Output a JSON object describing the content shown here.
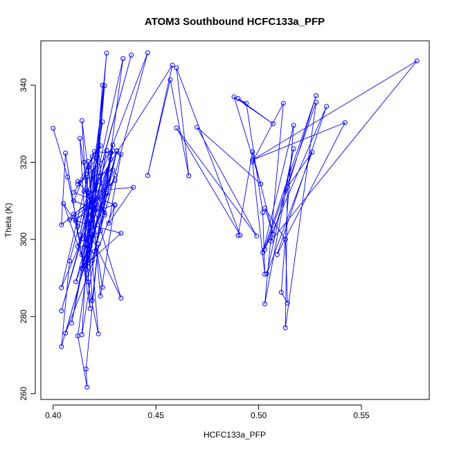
{
  "chart_data": {
    "type": "line",
    "title": "ATOM3 Southbound HCFC133a_PFP",
    "xlabel": "HCFC133a_PFP",
    "ylabel": "Theta (K)",
    "xlim": [
      0.394,
      0.583
    ],
    "ylim": [
      258.5,
      351.5
    ],
    "x_ticks": [
      0.4,
      0.45,
      0.5,
      0.55
    ],
    "x_tick_labels": [
      "0.40",
      "0.45",
      "0.50",
      "0.55"
    ],
    "y_ticks": [
      260,
      280,
      300,
      320,
      340
    ],
    "y_tick_labels": [
      "260",
      "280",
      "300",
      "320",
      "340"
    ],
    "grid": false,
    "legend": "none",
    "line_color": "#0000ff",
    "marker": "open-circle",
    "series": [
      {
        "values": [
          [
            0.4,
            328.8
          ],
          [
            0.407,
            316.2
          ],
          [
            0.412,
            303.5
          ],
          [
            0.405,
            309.3
          ],
          [
            0.415,
            294.0
          ],
          [
            0.417,
            318.8
          ],
          [
            0.421,
            301.1
          ],
          [
            0.414,
            330.8
          ],
          [
            0.419,
            284.2
          ],
          [
            0.422,
            298.8
          ],
          [
            0.416,
            266.4
          ],
          [
            0.4165,
            261.7
          ],
          [
            0.412,
            275.0
          ],
          [
            0.418,
            298.2
          ],
          [
            0.404,
            272.2
          ],
          [
            0.408,
            294.4
          ],
          [
            0.423,
            324.3
          ],
          [
            0.413,
            301.2
          ],
          [
            0.424,
            330.5
          ],
          [
            0.414,
            296.0
          ],
          [
            0.425,
            339.9
          ],
          [
            0.417,
            289.0
          ],
          [
            0.426,
            348.3
          ],
          [
            0.416,
            292.2
          ],
          [
            0.429,
            324.5
          ],
          [
            0.423,
            302.2
          ],
          [
            0.434,
            346.9
          ],
          [
            0.418,
            308.5
          ],
          [
            0.438,
            347.8
          ],
          [
            0.42,
            312.1
          ],
          [
            0.446,
            348.4
          ],
          [
            0.42,
            296.9
          ],
          [
            0.431,
            323.0
          ],
          [
            0.406,
            275.7
          ],
          [
            0.43,
            308.9
          ],
          [
            0.415,
            312.4
          ],
          [
            0.439,
            313.5
          ],
          [
            0.427,
            304.2
          ],
          [
            0.433,
            322.1
          ],
          [
            0.42,
            322.8
          ],
          [
            0.41,
            310.0
          ],
          [
            0.425,
            306.9
          ],
          [
            0.412,
            315.0
          ],
          [
            0.429,
            318.0
          ],
          [
            0.414,
            292.5
          ],
          [
            0.433,
            301.6
          ],
          [
            0.411,
            304.8
          ],
          [
            0.43,
            315.3
          ],
          [
            0.404,
            303.8
          ],
          [
            0.406,
            322.4
          ],
          [
            0.418,
            282.1
          ],
          [
            0.413,
            326.2
          ],
          [
            0.424,
            287.6
          ],
          [
            0.415,
            320.0
          ],
          [
            0.422,
            275.5
          ],
          [
            0.41,
            306.6
          ],
          [
            0.42,
            310.3
          ],
          [
            0.409,
            278.3
          ],
          [
            0.426,
            323.1
          ],
          [
            0.416,
            293.5
          ],
          [
            0.431,
            322.9
          ],
          [
            0.419,
            294.5
          ],
          [
            0.43,
            316.7
          ],
          [
            0.411,
            289.0
          ],
          [
            0.421,
            309.1
          ],
          [
            0.404,
            287.5
          ],
          [
            0.419,
            321.5
          ],
          [
            0.414,
            275.3
          ],
          [
            0.428,
            322.5
          ],
          [
            0.412,
            314.3
          ],
          [
            0.422,
            324.1
          ],
          [
            0.425,
            306.3
          ],
          [
            0.417,
            320.2
          ],
          [
            0.423,
            285.3
          ],
          [
            0.43,
            309.0
          ],
          [
            0.408,
            305.1
          ],
          [
            0.426,
            311.9
          ],
          [
            0.414,
            300.2
          ],
          [
            0.404,
            281.5
          ],
          [
            0.419,
            310.4
          ],
          [
            0.41,
            312.2
          ],
          [
            0.421,
            321.0
          ],
          [
            0.416,
            294.8
          ],
          [
            0.422,
            316.4
          ],
          [
            0.412,
            298.2
          ],
          [
            0.428,
            320.8
          ],
          [
            0.418,
            301.4
          ],
          [
            0.433,
            284.8
          ],
          [
            0.42,
            308.0
          ],
          [
            0.424,
            340.0
          ],
          [
            0.417,
            293.9
          ],
          [
            0.429,
            323.0
          ],
          [
            0.415,
            298.0
          ],
          [
            0.422,
            315.0
          ],
          [
            0.458,
            345.2
          ],
          [
            0.446,
            316.6
          ],
          [
            0.457,
            341.4
          ],
          [
            0.466,
            316.5
          ],
          [
            0.46,
            344.5
          ],
          [
            0.491,
            301.1
          ],
          [
            0.46,
            328.9
          ],
          [
            0.499,
            300.9
          ],
          [
            0.47,
            329.1
          ],
          [
            0.501,
            314.4
          ],
          [
            0.488,
            337.0
          ],
          [
            0.507,
            330.0
          ],
          [
            0.49,
            336.5
          ],
          [
            0.494,
            335.3
          ],
          [
            0.502,
            307.0
          ],
          [
            0.503,
            291.0
          ],
          [
            0.497,
            320.1
          ],
          [
            0.512,
            335.3
          ],
          [
            0.503,
            283.3
          ],
          [
            0.517,
            323.5
          ],
          [
            0.504,
            291.1
          ],
          [
            0.526,
            322.6
          ],
          [
            0.514,
            313.6
          ],
          [
            0.513,
            277.1
          ],
          [
            0.528,
            335.6
          ],
          [
            0.503,
            297.4
          ],
          [
            0.533,
            334.5
          ],
          [
            0.509,
            296.1
          ],
          [
            0.542,
            330.3
          ],
          [
            0.497,
            320.6
          ],
          [
            0.577,
            346.3
          ],
          [
            0.506,
            299.6
          ],
          [
            0.528,
            337.3
          ],
          [
            0.502,
            296.6
          ],
          [
            0.517,
            329.6
          ],
          [
            0.511,
            286.3
          ],
          [
            0.514,
            283.5
          ],
          [
            0.513,
            300.0
          ],
          [
            0.503,
            308.1
          ],
          [
            0.507,
            301.4
          ],
          [
            0.497,
            322.7
          ],
          [
            0.49,
            301.0
          ]
        ]
      }
    ]
  }
}
